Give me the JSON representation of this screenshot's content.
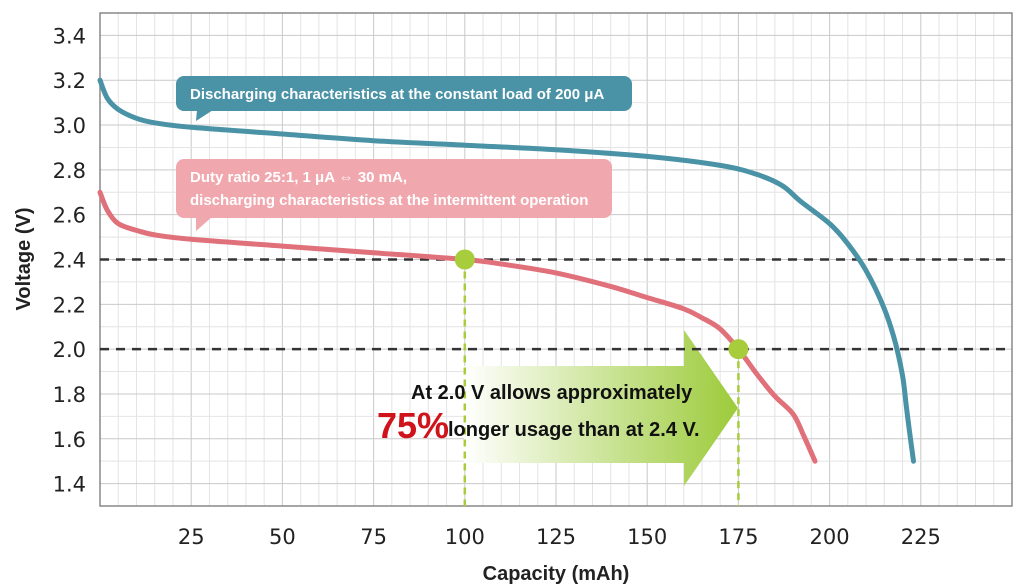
{
  "chart_data": {
    "type": "line",
    "xlabel": "Capacity (mAh)",
    "ylabel": "Voltage (V)",
    "xlim": [
      0,
      250
    ],
    "ylim": [
      1.3,
      3.5
    ],
    "x_ticks": [
      25,
      50,
      75,
      100,
      125,
      150,
      175,
      200,
      225
    ],
    "y_ticks": [
      1.4,
      1.6,
      1.8,
      2.0,
      2.2,
      2.4,
      2.6,
      2.8,
      3.0,
      3.2,
      3.4
    ],
    "x_tick_labels": [
      "25",
      "50",
      "75",
      "100",
      "125",
      "150",
      "175",
      "200",
      "225"
    ],
    "y_tick_labels": [
      "1.4",
      "1.6",
      "1.8",
      "2.0",
      "2.2",
      "2.4",
      "2.6",
      "2.8",
      "3.0",
      "3.2",
      "3.4"
    ],
    "grid": true,
    "series": [
      {
        "color": "#4a92a6",
        "x": [
          0,
          2,
          5,
          10,
          15,
          25,
          50,
          75,
          100,
          125,
          150,
          170,
          180,
          187,
          192,
          200,
          205,
          210,
          215,
          218,
          220,
          221,
          222,
          223
        ],
        "y": [
          3.2,
          3.12,
          3.07,
          3.03,
          3.01,
          2.99,
          2.96,
          2.93,
          2.91,
          2.89,
          2.86,
          2.82,
          2.78,
          2.73,
          2.66,
          2.56,
          2.47,
          2.35,
          2.18,
          2.03,
          1.88,
          1.75,
          1.62,
          1.5
        ]
      },
      {
        "color": "#e0707a",
        "x": [
          0,
          2,
          5,
          10,
          15,
          25,
          50,
          75,
          100,
          110,
          125,
          140,
          150,
          160,
          165,
          170,
          175,
          180,
          185,
          190,
          193,
          196
        ],
        "y": [
          2.7,
          2.62,
          2.56,
          2.53,
          2.51,
          2.49,
          2.46,
          2.43,
          2.4,
          2.38,
          2.34,
          2.28,
          2.23,
          2.18,
          2.14,
          2.09,
          2.0,
          1.89,
          1.79,
          1.71,
          1.61,
          1.5
        ]
      }
    ],
    "reference_lines": [
      2.4,
      2.0
    ],
    "markers": [
      {
        "x": 100,
        "y": 2.4
      },
      {
        "x": 175,
        "y": 2.0
      }
    ],
    "annotations": {
      "blue_callout": "Discharging characteristics at the constant load of 200 μA",
      "pink_callout_line1": "Duty ratio 25:1, 1 μA ⇔ 30 mA,",
      "pink_callout_line2": "discharging characteristics at the intermittent operation",
      "arrow_line1": "At 2.0 V allows approximately",
      "arrow_percent": "75%",
      "arrow_line2": "longer usage than at 2.4 V."
    },
    "colors": {
      "blue": "#4a92a6",
      "pink": "#e0707a",
      "pink_callout": "#f0a8ae",
      "marker": "#a7cd3c",
      "arrow_start": "#ffffff",
      "arrow_end": "#9ccb3a",
      "percent": "#d0121b"
    }
  }
}
